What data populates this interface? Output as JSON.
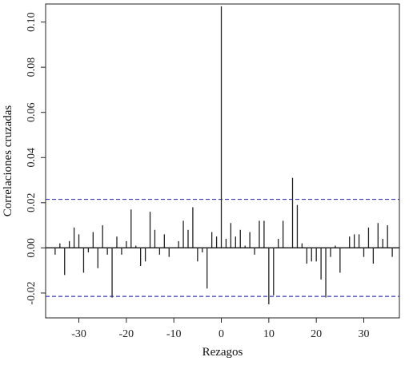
{
  "chart_data": {
    "type": "bar",
    "title": "",
    "xlabel": "Rezagos",
    "ylabel": "Correlaciones cruzadas",
    "xlim": [
      -37,
      37.5
    ],
    "ylim": [
      -0.031,
      0.108
    ],
    "xticks": [
      -30,
      -20,
      -10,
      0,
      10,
      20,
      30
    ],
    "xtick_labels": [
      "-30",
      "-20",
      "-10",
      "0",
      "10",
      "20",
      "30"
    ],
    "yticks": [
      -0.02,
      0.0,
      0.02,
      0.04,
      0.06,
      0.08,
      0.1
    ],
    "ytick_labels": [
      "-0.02",
      "0.00",
      "0.02",
      "0.04",
      "0.06",
      "0.08",
      "0.10"
    ],
    "confidence_bounds": [
      0.0215,
      -0.0215
    ],
    "confidence_color": "#3333cc",
    "bar_color": "#222222",
    "x": [
      -36,
      -35,
      -34,
      -33,
      -32,
      -31,
      -30,
      -29,
      -28,
      -27,
      -26,
      -25,
      -24,
      -23,
      -22,
      -21,
      -20,
      -19,
      -18,
      -17,
      -16,
      -15,
      -14,
      -13,
      -12,
      -11,
      -10,
      -9,
      -8,
      -7,
      -6,
      -5,
      -4,
      -3,
      -2,
      -1,
      0,
      1,
      2,
      3,
      4,
      5,
      6,
      7,
      8,
      9,
      10,
      11,
      12,
      13,
      14,
      15,
      16,
      17,
      18,
      19,
      20,
      21,
      22,
      23,
      24,
      25,
      26,
      27,
      28,
      29,
      30,
      31,
      32,
      33,
      34,
      35,
      36
    ],
    "values": [
      0.0,
      -0.003,
      0.002,
      -0.012,
      0.003,
      0.009,
      0.006,
      -0.011,
      -0.002,
      0.007,
      -0.009,
      0.01,
      -0.003,
      -0.022,
      0.005,
      -0.003,
      0.003,
      0.017,
      0.001,
      -0.008,
      -0.006,
      0.016,
      0.008,
      -0.003,
      0.006,
      -0.004,
      0.0,
      0.003,
      0.012,
      0.008,
      0.018,
      -0.006,
      -0.002,
      -0.018,
      0.007,
      0.005,
      0.107,
      0.004,
      0.011,
      0.005,
      0.008,
      0.001,
      0.007,
      -0.003,
      0.012,
      0.012,
      -0.025,
      -0.021,
      0.004,
      0.012,
      0.0,
      0.031,
      0.019,
      0.002,
      -0.007,
      -0.006,
      -0.006,
      -0.014,
      -0.022,
      -0.004,
      0.001,
      -0.011,
      0.0,
      0.005,
      0.006,
      0.006,
      -0.004,
      0.009,
      -0.007,
      0.011,
      0.004,
      0.01,
      -0.004
    ]
  }
}
